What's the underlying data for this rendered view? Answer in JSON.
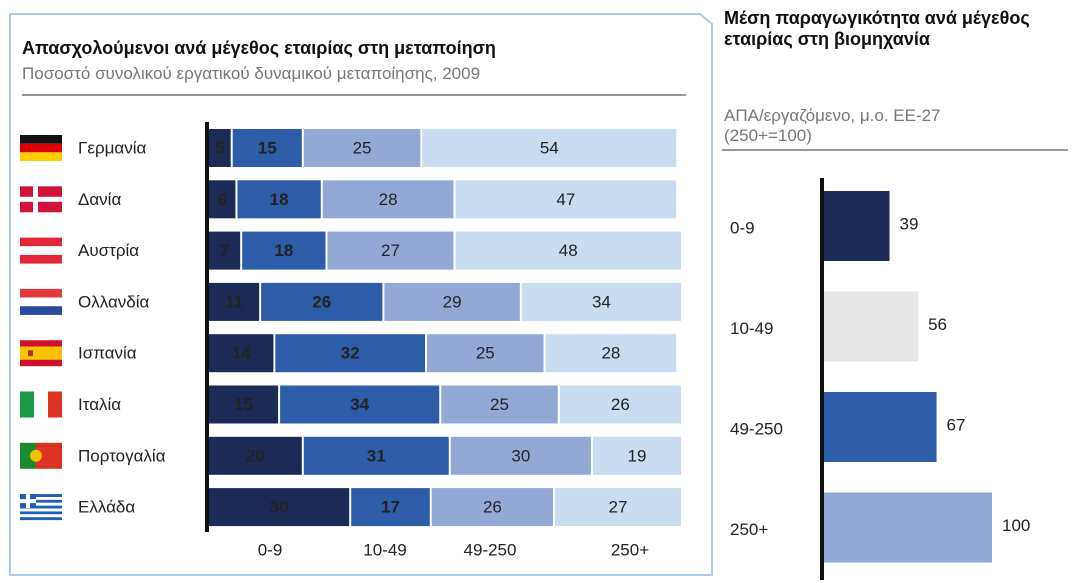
{
  "chart_data": [
    {
      "type": "stacked-bar",
      "orientation": "horizontal",
      "title": "Απασχολούμενοι ανά μέγεθος εταιρίας στη μεταποίηση",
      "subtitle": "Ποσοστό συνολικού εργατικού δυναμικού μεταποίησης, 2009",
      "categories": [
        "Γερμανία",
        "Δανία",
        "Αυστρία",
        "Ολλανδία",
        "Ισπανία",
        "Ιταλία",
        "Πορτογαλία",
        "Ελλάδα"
      ],
      "series": [
        {
          "name": "0-9",
          "color": "#1c2a56",
          "values": [
            5,
            6,
            7,
            11,
            14,
            15,
            20,
            30
          ]
        },
        {
          "name": "10-49",
          "color": "#2d5ca8",
          "values": [
            15,
            18,
            18,
            26,
            32,
            34,
            31,
            17
          ]
        },
        {
          "name": "49-250",
          "color": "#92a9d6",
          "values": [
            25,
            28,
            27,
            29,
            25,
            25,
            30,
            26
          ]
        },
        {
          "name": "250+",
          "color": "#c8ddf1",
          "values": [
            54,
            47,
            48,
            34,
            28,
            26,
            19,
            27
          ]
        }
      ]
    },
    {
      "type": "bar",
      "orientation": "horizontal",
      "title": "Μέση παραγωγικότητα ανά μέγεθος εταιρίας στη βιομηχανία",
      "subtitle": "ΑΠΑ/εργαζόμενο, μ.ο. ΕΕ-27 (250+=100)",
      "categories": [
        "0-9",
        "10-49",
        "49-250",
        "250+"
      ],
      "values": [
        39,
        56,
        67,
        100
      ],
      "colors": [
        "#1c2a56",
        "#e6e6e6",
        "#2d5ca8",
        "#92a9d6"
      ]
    }
  ]
}
